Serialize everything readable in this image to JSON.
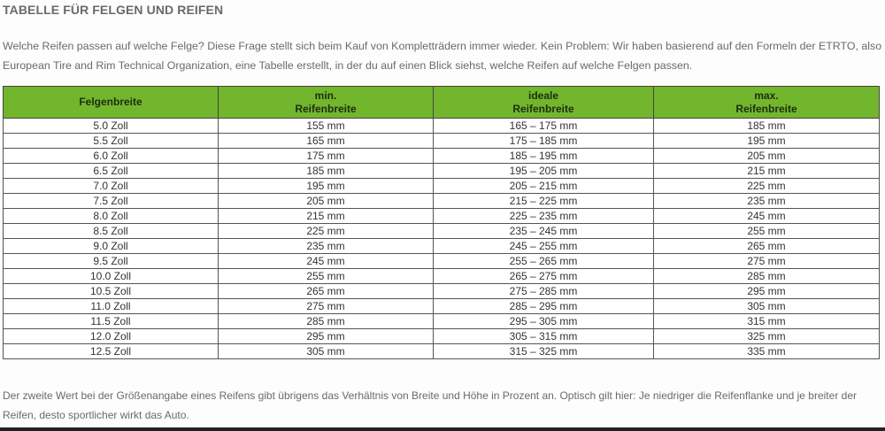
{
  "title": "TABELLE FÜR FELGEN UND REIFEN",
  "intro": "Welche Reifen passen auf welche Felge? Diese Frage stellt sich beim Kauf von Kompletträdern immer wieder. Kein Problem: Wir haben basierend auf den Formeln der ETRTO, also European Tire and Rim Technical Organization, eine Tabelle erstellt, in der du auf einen Blick siehst, welche Reifen auf welche Felgen passen.",
  "table": {
    "headers": [
      {
        "line1": "Felgenbreite",
        "line2": ""
      },
      {
        "line1": "min.",
        "line2": "Reifenbreite"
      },
      {
        "line1": "ideale",
        "line2": "Reifenbreite"
      },
      {
        "line1": "max.",
        "line2": "Reifenbreite"
      }
    ],
    "rows": [
      [
        "5.0 Zoll",
        "155 mm",
        "165 – 175 mm",
        "185 mm"
      ],
      [
        "5.5 Zoll",
        "165 mm",
        "175 – 185 mm",
        "195 mm"
      ],
      [
        "6.0 Zoll",
        "175 mm",
        "185 – 195 mm",
        "205 mm"
      ],
      [
        "6.5 Zoll",
        "185 mm",
        "195 – 205 mm",
        "215 mm"
      ],
      [
        "7.0 Zoll",
        "195 mm",
        "205 – 215 mm",
        "225 mm"
      ],
      [
        "7.5 Zoll",
        "205 mm",
        "215 – 225 mm",
        "235 mm"
      ],
      [
        "8.0 Zoll",
        "215 mm",
        "225 – 235 mm",
        "245 mm"
      ],
      [
        "8.5 Zoll",
        "225 mm",
        "235 – 245 mm",
        "255 mm"
      ],
      [
        "9.0 Zoll",
        "235 mm",
        "245 – 255 mm",
        "265 mm"
      ],
      [
        "9.5 Zoll",
        "245 mm",
        "255 – 265 mm",
        "275 mm"
      ],
      [
        "10.0 Zoll",
        "255 mm",
        "265 – 275 mm",
        "285 mm"
      ],
      [
        "10.5 Zoll",
        "265 mm",
        "275 – 285 mm",
        "295 mm"
      ],
      [
        "11.0 Zoll",
        "275 mm",
        "285 – 295 mm",
        "305 mm"
      ],
      [
        "11.5 Zoll",
        "285 mm",
        "295 – 305 mm",
        "315 mm"
      ],
      [
        "12.0 Zoll",
        "295 mm",
        "305 – 315 mm",
        "325 mm"
      ],
      [
        "12.5 Zoll",
        "305 mm",
        "315 – 325 mm",
        "335 mm"
      ]
    ]
  },
  "outro": "Der zweite Wert bei der Größenangabe eines Reifens gibt übrigens das Verhältnis von Breite und Höhe in Prozent an. Optisch gilt hier: Je niedriger die Reifenflanke und je breiter der Reifen, desto sportlicher wirkt das Auto.",
  "colors": {
    "header_bg": "#72b62e"
  }
}
